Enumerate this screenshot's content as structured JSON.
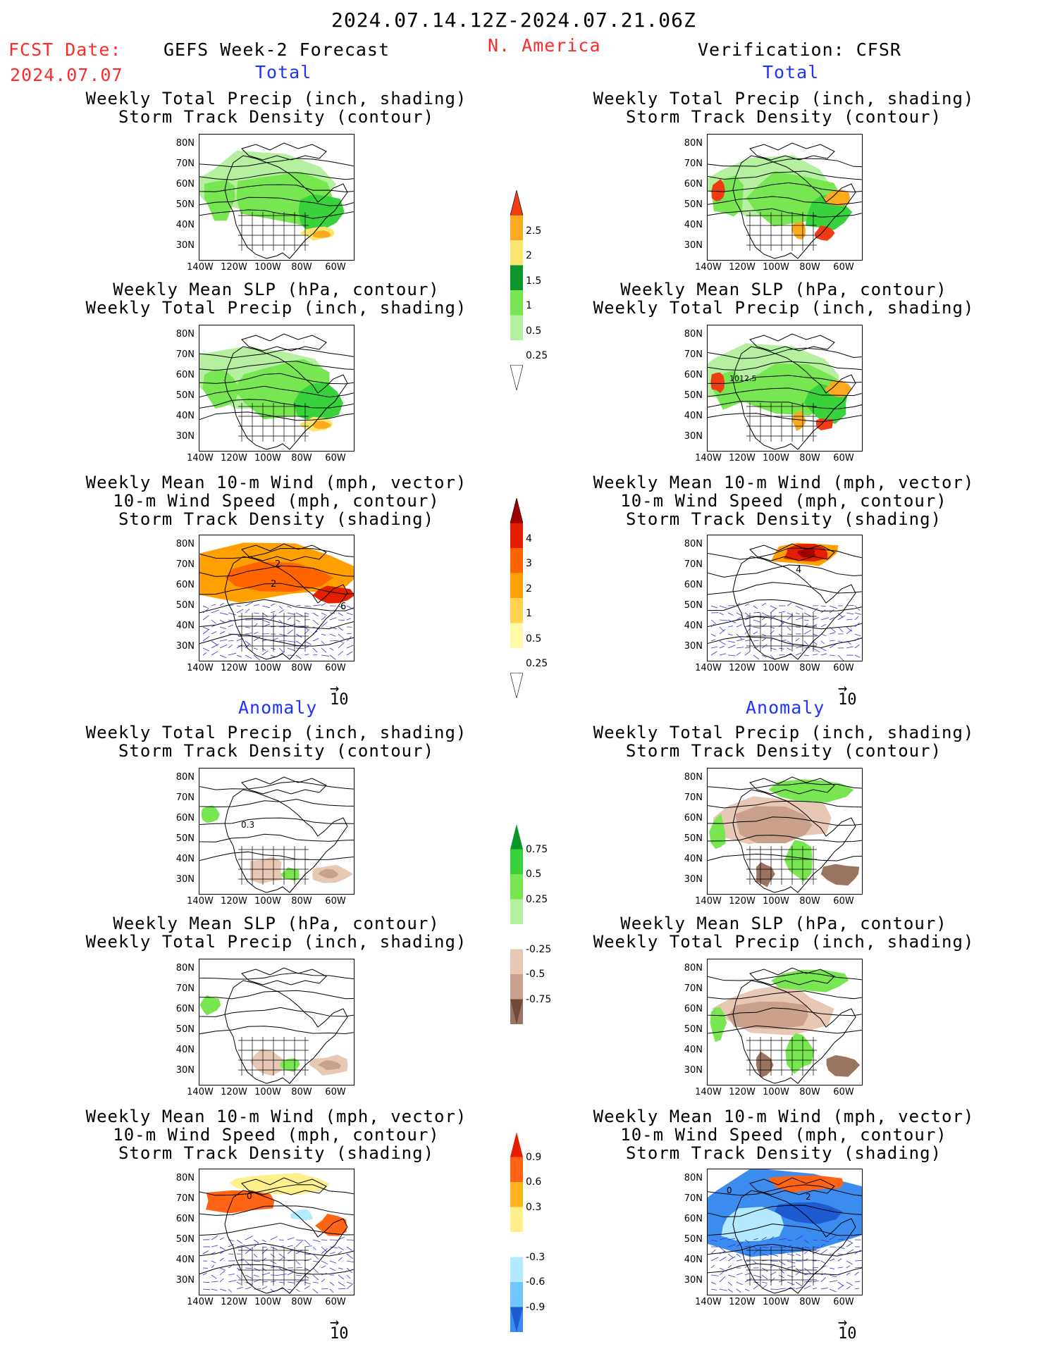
{
  "header": {
    "period": "2024.07.14.12Z-2024.07.21.06Z",
    "fcst_label": "FCST Date:",
    "fcst_date": "2024.07.07",
    "left_title": "GEFS Week-2 Forecast",
    "region": "N. America",
    "right_title": "Verification: CFSR"
  },
  "sections": {
    "total": "Total",
    "anomaly": "Anomaly"
  },
  "panel_titles": {
    "precip_track": [
      "Weekly Total Precip (inch, shading)",
      "Storm Track Density (contour)"
    ],
    "slp_precip": [
      "Weekly Mean SLP (hPa, contour)",
      "Weekly Total Precip (inch, shading)"
    ],
    "wind_track": [
      "Weekly Mean 10-m Wind (mph, vector)",
      "10-m Wind Speed (mph, contour)",
      "Storm Track Density (shading)"
    ]
  },
  "axes": {
    "lat": [
      "80N",
      "70N",
      "60N",
      "50N",
      "40N",
      "30N"
    ],
    "lon": [
      "140W",
      "120W",
      "100W",
      "80W",
      "60W"
    ]
  },
  "vector_ref": "10",
  "contour_labels": {
    "slp_cfsr": "1012.5",
    "track_2": "2",
    "track_6": "6",
    "track_4": "4",
    "anom_03": "0.3",
    "anom_0": "0"
  },
  "colorbars": {
    "precip_total": [
      "2.5",
      "2",
      "1.5",
      "1",
      "0.5",
      "0.25"
    ],
    "track_total": [
      "4",
      "3",
      "2",
      "1",
      "0.5",
      "0.25"
    ],
    "precip_anom": [
      "0.75",
      "0.5",
      "0.25",
      "-0.25",
      "-0.5",
      "-0.75"
    ],
    "track_anom": [
      "0.9",
      "0.6",
      "0.3",
      "-0.3",
      "-0.6",
      "-0.9"
    ]
  },
  "colors": {
    "precip": [
      "#b4f0a0",
      "#78e650",
      "#37d23c",
      "#0a9628",
      "#fae66e",
      "#faaa1e",
      "#f03c14"
    ],
    "track": [
      "#fffaaa",
      "#ffd250",
      "#ffa000",
      "#ff6400",
      "#e61e00",
      "#a00000"
    ],
    "precip_anom_pos": [
      "#b4f0a0",
      "#78e650",
      "#37d23c",
      "#0a9628"
    ],
    "precip_anom_neg": [
      "#e6c8b4",
      "#c8a08c",
      "#9b7361",
      "#6e4b3c"
    ],
    "track_anom_pos": [
      "#fff08c",
      "#ffb41e",
      "#ff6414",
      "#e61e00"
    ],
    "track_anom_neg": [
      "#b4eaff",
      "#6ec8ff",
      "#3c8cf0",
      "#1e5ad2"
    ]
  }
}
